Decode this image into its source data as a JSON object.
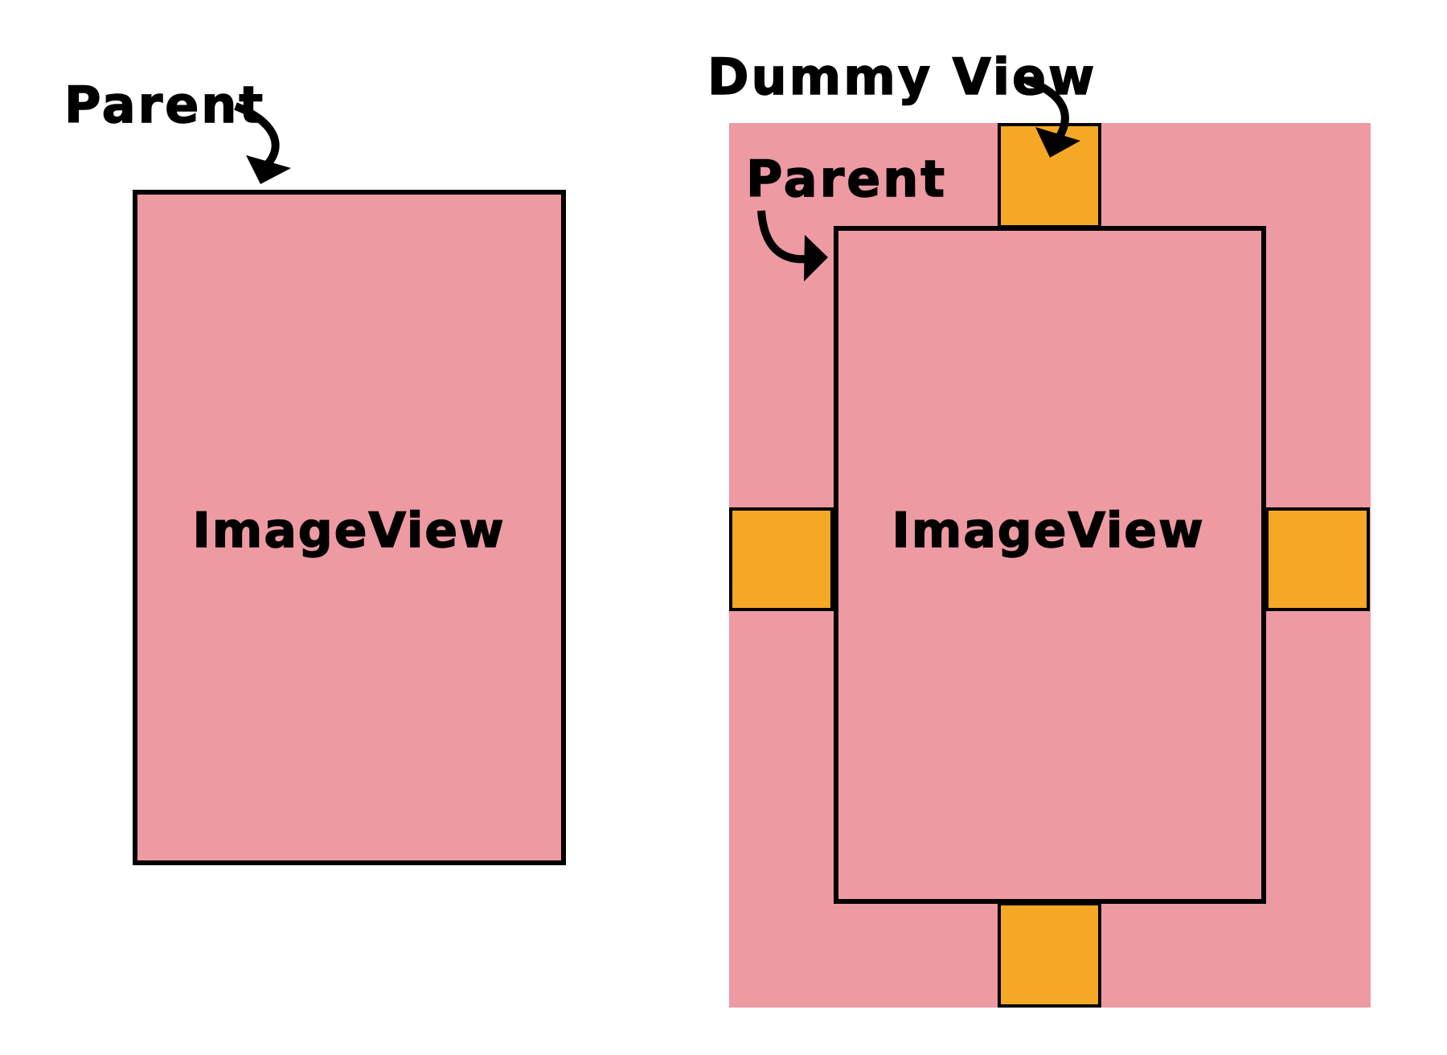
{
  "colors": {
    "view_fill": "#ED9AA3",
    "dummy_fill": "#F5A726",
    "outline": "#000000",
    "background": "#FFFFFF"
  },
  "left_diagram": {
    "parent_label": "Parent",
    "image_view_label": "ImageView"
  },
  "right_diagram": {
    "dummy_view_label": "Dummy View",
    "parent_label": "Parent",
    "image_view_label": "ImageView"
  },
  "icons": [
    "curved-arrow-icon"
  ]
}
